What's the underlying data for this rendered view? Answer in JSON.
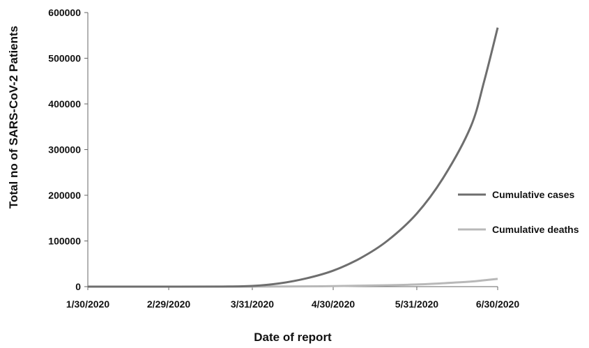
{
  "chart_data": {
    "type": "line",
    "xlabel": "Date of report",
    "ylabel": "Total no of SARS-CoV-2 Patients",
    "x_ticks": [
      "1/30/2020",
      "2/29/2020",
      "3/31/2020",
      "4/30/2020",
      "5/31/2020",
      "6/30/2020"
    ],
    "y_ticks": [
      "0",
      "100000",
      "200000",
      "300000",
      "400000",
      "500000",
      "600000"
    ],
    "ylim": [
      0,
      600000
    ],
    "xlim": [
      "2020-01-30",
      "2020-06-30"
    ],
    "grid": false,
    "legend_position": "right",
    "series": [
      {
        "name": "Cumulative cases",
        "color": "#6e6e6e",
        "points": [
          [
            "2020-01-30",
            0
          ],
          [
            "2020-02-29",
            0
          ],
          [
            "2020-03-20",
            200
          ],
          [
            "2020-03-31",
            1500
          ],
          [
            "2020-04-10",
            7000
          ],
          [
            "2020-04-20",
            18000
          ],
          [
            "2020-04-30",
            35000
          ],
          [
            "2020-05-10",
            62000
          ],
          [
            "2020-05-20",
            100000
          ],
          [
            "2020-05-31",
            160000
          ],
          [
            "2020-06-10",
            240000
          ],
          [
            "2020-06-20",
            350000
          ],
          [
            "2020-06-25",
            450000
          ],
          [
            "2020-06-30",
            567000
          ]
        ]
      },
      {
        "name": "Cumulative deaths",
        "color": "#b8b8b8",
        "points": [
          [
            "2020-01-30",
            0
          ],
          [
            "2020-03-31",
            50
          ],
          [
            "2020-04-30",
            1100
          ],
          [
            "2020-05-20",
            3000
          ],
          [
            "2020-05-31",
            4700
          ],
          [
            "2020-06-10",
            7500
          ],
          [
            "2020-06-20",
            11000
          ],
          [
            "2020-06-25",
            14000
          ],
          [
            "2020-06-30",
            17000
          ]
        ]
      }
    ]
  }
}
